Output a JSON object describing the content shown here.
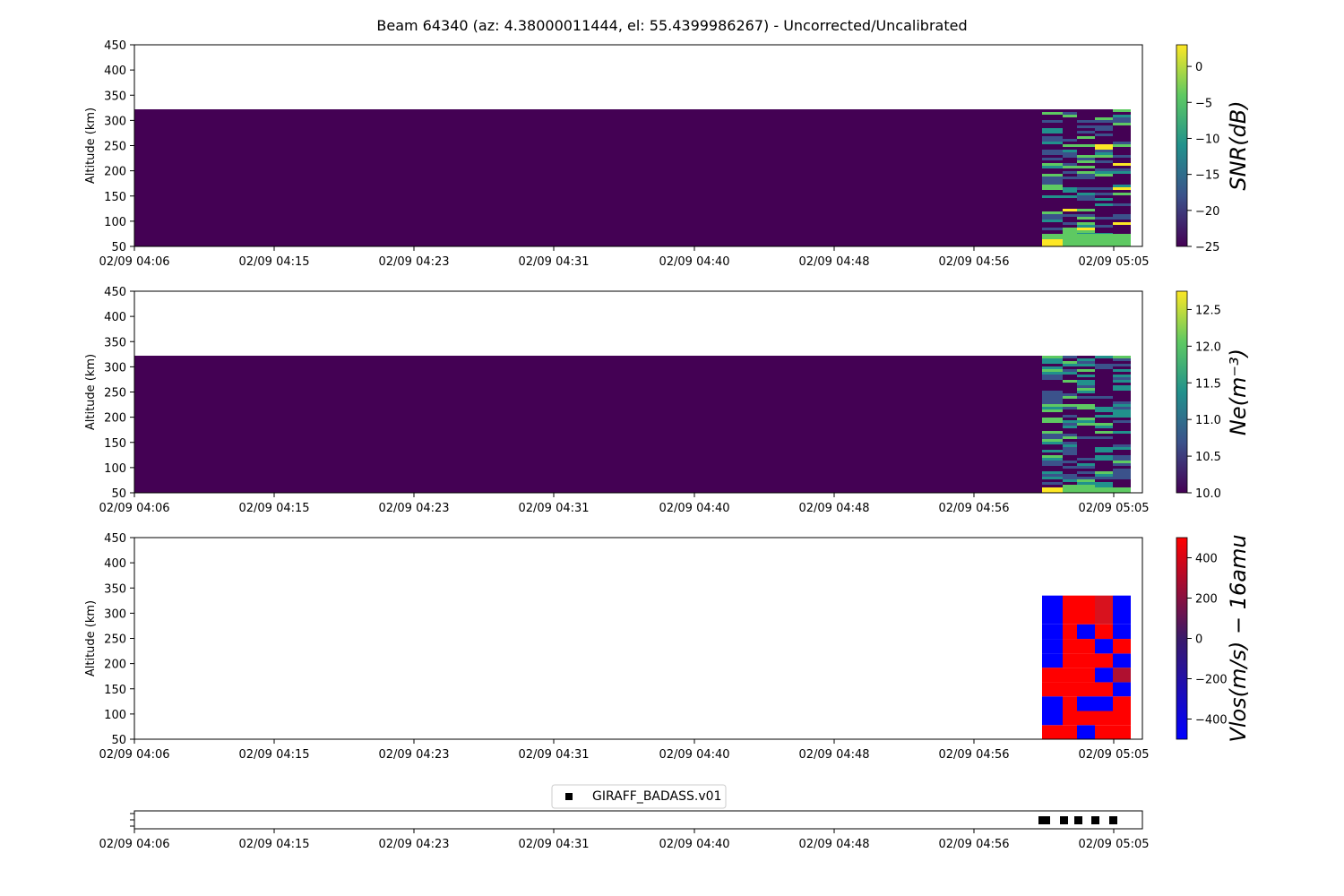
{
  "title": "Beam 64340 (az: 4.38000011444, el: 55.4399986267) - Uncorrected/Uncalibrated",
  "colors": {
    "background": "#440154",
    "viridis": [
      "#440154",
      "#3b528b",
      "#21918c",
      "#5ec962",
      "#fde725"
    ],
    "vlos": [
      "#0000ff",
      "#ff0000"
    ]
  },
  "x_ticks": [
    "02/09 04:06",
    "02/09 04:15",
    "02/09 04:23",
    "02/09 04:31",
    "02/09 04:40",
    "02/09 04:48",
    "02/09 04:56",
    "02/09 05:05"
  ],
  "y_ticks": [
    "50",
    "100",
    "150",
    "200",
    "250",
    "300",
    "350",
    "400",
    "450"
  ],
  "chart_data": [
    {
      "type": "heatmap",
      "ylabel": "Altitude (km)",
      "ylim": [
        50,
        450
      ],
      "data_top_km": 322,
      "colorbar": {
        "label": "SNR(dB)",
        "range": [
          -25,
          3
        ],
        "ticks": [
          "0",
          "−5",
          "−10",
          "−15",
          "−20",
          "−25"
        ],
        "tick_values": [
          0,
          -5,
          -10,
          -15,
          -20,
          -25
        ]
      },
      "fill_value": -25,
      "data_start_time": "05:01"
    },
    {
      "type": "heatmap",
      "ylabel": "Altitude (km)",
      "ylim": [
        50,
        450
      ],
      "data_top_km": 322,
      "colorbar": {
        "label": "Ne(m⁻³)",
        "range": [
          10.0,
          12.75
        ],
        "ticks": [
          "12.5",
          "12.0",
          "11.5",
          "11.0",
          "10.5",
          "10.0"
        ],
        "tick_values": [
          12.5,
          12.0,
          11.5,
          11.0,
          10.5,
          10.0
        ]
      },
      "fill_value": 10.0,
      "data_start_time": "05:01"
    },
    {
      "type": "heatmap",
      "ylabel": "Altitude (km)",
      "ylim": [
        50,
        450
      ],
      "data_top_km": 335,
      "colorbar": {
        "label": "Vlos(m/s) − 16amu",
        "range": [
          -500,
          500
        ],
        "ticks": [
          "400",
          "200",
          "0",
          "−200",
          "−400"
        ],
        "tick_values": [
          400,
          200,
          0,
          -200,
          -400
        ]
      },
      "altitude_bins_km": [
        50,
        78,
        106,
        135,
        163,
        192,
        220,
        249,
        278,
        306,
        335
      ],
      "columns": [
        [
          500,
          -500,
          -500,
          500,
          500,
          -500,
          -500,
          -500,
          -500,
          -500
        ],
        [
          500,
          500,
          500,
          500,
          500,
          500,
          500,
          500,
          500,
          500
        ],
        [
          -500,
          500,
          -500,
          500,
          500,
          500,
          500,
          -500,
          500,
          500
        ],
        [
          500,
          500,
          -500,
          500,
          -500,
          500,
          -500,
          500,
          300,
          300
        ],
        [
          500,
          500,
          500,
          -500,
          100,
          -500,
          500,
          -500,
          -500,
          -500
        ]
      ]
    },
    {
      "type": "scatter",
      "legend": [
        "GIRAFF_BADASS.v01"
      ],
      "x": [
        "05:01",
        "05:01",
        "05:03",
        "05:04",
        "05:05",
        "05:06"
      ]
    }
  ]
}
